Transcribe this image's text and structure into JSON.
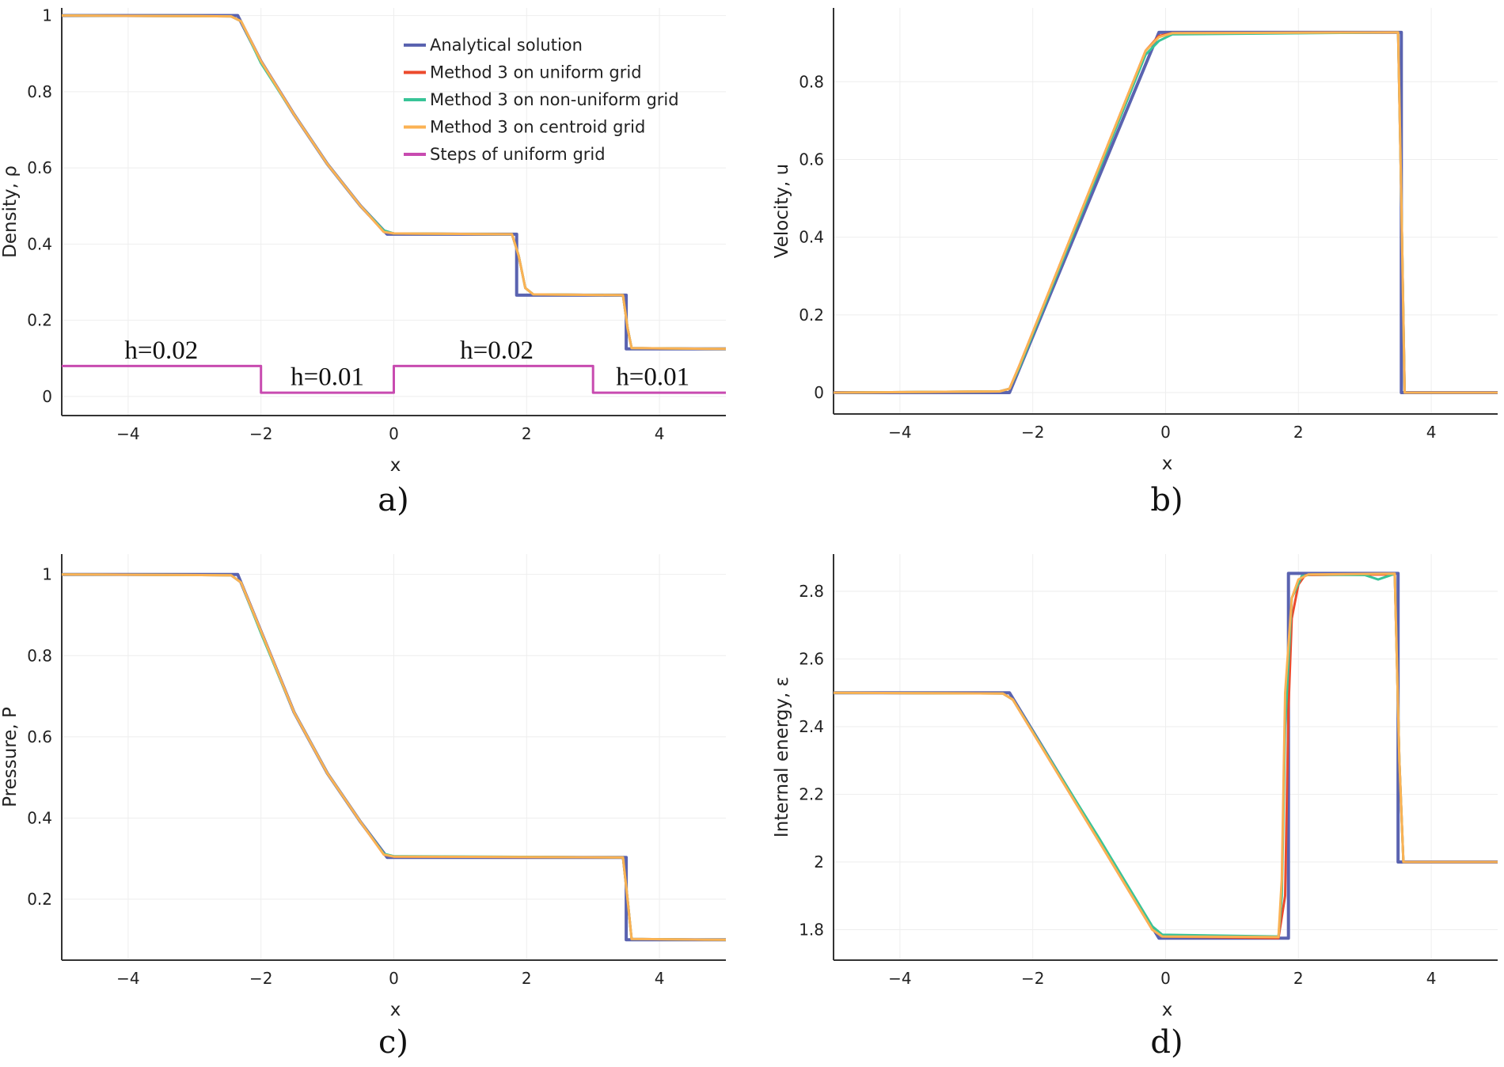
{
  "colors": {
    "analytical": "#5a63b0",
    "uniform": "#ec4a2c",
    "nonuniform": "#38c497",
    "centroid": "#fbb254",
    "steps": "#c84bb0"
  },
  "legend": [
    {
      "name": "Analytical solution",
      "color": "#5a63b0"
    },
    {
      "name": "Method 3 on uniform grid",
      "color": "#ec4a2c"
    },
    {
      "name": "Method 3 on non-uniform grid",
      "color": "#38c497"
    },
    {
      "name": "Method 3 on centroid grid",
      "color": "#fbb254"
    },
    {
      "name": "Steps of uniform grid",
      "color": "#c84bb0"
    }
  ],
  "chart_data": [
    {
      "id": "a",
      "type": "line",
      "panel_label": "a)",
      "xlabel": "x",
      "ylabel": "Density, ρ",
      "xlim": [
        -5,
        5
      ],
      "ylim": [
        -0.05,
        1.02
      ],
      "xticks": [
        -4,
        -2,
        0,
        2,
        4
      ],
      "xtick_labels": [
        "−4",
        "−2",
        "0",
        "2",
        "4"
      ],
      "yticks": [
        0,
        0.2,
        0.4,
        0.6,
        0.8,
        1
      ],
      "ytick_labels": [
        "0",
        "0.2",
        "0.4",
        "0.6",
        "0.8",
        "1"
      ],
      "series": [
        {
          "name": "Analytical solution",
          "color": "#5a63b0",
          "width": 4,
          "x": [
            -5,
            -2.35,
            -2.0,
            -1.5,
            -1.0,
            -0.5,
            -0.1,
            1.85,
            1.85,
            3.5,
            3.5,
            5
          ],
          "y": [
            1,
            1,
            0.88,
            0.74,
            0.61,
            0.5,
            0.426,
            0.426,
            0.266,
            0.266,
            0.125,
            0.125
          ]
        },
        {
          "name": "Method 3 on uniform grid",
          "color": "#ec4a2c",
          "width": 3,
          "x": [
            -5,
            -2.45,
            -2.3,
            -2.0,
            -1.5,
            -1.0,
            -0.5,
            -0.15,
            0.0,
            1.78,
            1.88,
            1.98,
            2.1,
            3.45,
            3.52,
            3.58,
            5
          ],
          "y": [
            1,
            0.998,
            0.985,
            0.88,
            0.74,
            0.61,
            0.5,
            0.432,
            0.428,
            0.426,
            0.37,
            0.285,
            0.268,
            0.266,
            0.18,
            0.127,
            0.125
          ]
        },
        {
          "name": "Method 3 on non-uniform grid",
          "color": "#38c497",
          "width": 3,
          "x": [
            -5,
            -2.45,
            -2.3,
            -2.0,
            -1.5,
            -1.0,
            -0.5,
            -0.15,
            0.0,
            1.78,
            1.88,
            1.98,
            2.1,
            3.45,
            3.52,
            3.58,
            5
          ],
          "y": [
            1,
            0.998,
            0.985,
            0.875,
            0.74,
            0.61,
            0.5,
            0.436,
            0.428,
            0.426,
            0.37,
            0.285,
            0.268,
            0.266,
            0.18,
            0.127,
            0.125
          ]
        },
        {
          "name": "Method 3 on centroid grid",
          "color": "#fbb254",
          "width": 3,
          "x": [
            -5,
            -2.45,
            -2.3,
            -2.0,
            -1.5,
            -1.0,
            -0.5,
            -0.15,
            0.0,
            1.78,
            1.88,
            1.98,
            2.1,
            3.45,
            3.52,
            3.58,
            5
          ],
          "y": [
            1,
            0.998,
            0.985,
            0.88,
            0.74,
            0.61,
            0.5,
            0.432,
            0.428,
            0.426,
            0.37,
            0.285,
            0.268,
            0.266,
            0.18,
            0.127,
            0.125
          ]
        },
        {
          "name": "Steps of uniform grid",
          "color": "#c84bb0",
          "width": 3,
          "x": [
            -5,
            -2,
            -2,
            0,
            0,
            3,
            3,
            5
          ],
          "y": [
            0.08,
            0.08,
            0.01,
            0.01,
            0.08,
            0.08,
            0.01,
            0.01
          ]
        }
      ],
      "annotations": [
        {
          "text": "h=0.02",
          "x": -3.5,
          "y": 0.1
        },
        {
          "text": "h=0.01",
          "x": -1.0,
          "y": 0.03
        },
        {
          "text": "h=0.02",
          "x": 1.55,
          "y": 0.1
        },
        {
          "text": "h=0.01",
          "x": 3.9,
          "y": 0.03
        }
      ]
    },
    {
      "id": "b",
      "type": "line",
      "panel_label": "b)",
      "xlabel": "x",
      "ylabel": "Velocity, u",
      "xlim": [
        -5,
        5
      ],
      "ylim": [
        -0.055,
        0.99
      ],
      "xticks": [
        -4,
        -2,
        0,
        2,
        4
      ],
      "xtick_labels": [
        "−4",
        "−2",
        "0",
        "2",
        "4"
      ],
      "yticks": [
        0,
        0.2,
        0.4,
        0.6,
        0.8
      ],
      "ytick_labels": [
        "0",
        "0.2",
        "0.4",
        "0.6",
        "0.8"
      ],
      "series": [
        {
          "name": "Analytical solution",
          "color": "#5a63b0",
          "width": 4,
          "x": [
            -5,
            -2.35,
            -0.1,
            3.55,
            3.55,
            5
          ],
          "y": [
            0,
            0,
            0.927,
            0.927,
            0,
            0
          ]
        },
        {
          "name": "Method 3 on uniform grid",
          "color": "#ec4a2c",
          "width": 3,
          "x": [
            -5,
            -2.5,
            -2.35,
            -2.2,
            -0.3,
            -0.1,
            0.1,
            3.5,
            3.55,
            3.6,
            5
          ],
          "y": [
            0,
            0.003,
            0.01,
            0.07,
            0.88,
            0.918,
            0.925,
            0.927,
            0.5,
            0.0,
            0
          ]
        },
        {
          "name": "Method 3 on non-uniform grid",
          "color": "#38c497",
          "width": 3,
          "x": [
            -5,
            -2.5,
            -2.35,
            -2.2,
            -0.3,
            -0.1,
            0.1,
            3.5,
            3.55,
            3.6,
            5
          ],
          "y": [
            0,
            0.003,
            0.01,
            0.065,
            0.87,
            0.905,
            0.922,
            0.927,
            0.5,
            0.0,
            0
          ]
        },
        {
          "name": "Method 3 on centroid grid",
          "color": "#fbb254",
          "width": 3,
          "x": [
            -5,
            -2.5,
            -2.35,
            -2.2,
            -0.3,
            -0.1,
            0.1,
            3.5,
            3.55,
            3.6,
            5
          ],
          "y": [
            0,
            0.003,
            0.01,
            0.07,
            0.88,
            0.915,
            0.925,
            0.927,
            0.5,
            0.0,
            0
          ]
        }
      ]
    },
    {
      "id": "c",
      "type": "line",
      "panel_label": "c)",
      "xlabel": "x",
      "ylabel": "Pressure, P",
      "xlim": [
        -5,
        5
      ],
      "ylim": [
        0.05,
        1.05
      ],
      "xticks": [
        -4,
        -2,
        0,
        2,
        4
      ],
      "xtick_labels": [
        "−4",
        "−2",
        "0",
        "2",
        "4"
      ],
      "yticks": [
        0.2,
        0.4,
        0.6,
        0.8,
        1
      ],
      "ytick_labels": [
        "0.2",
        "0.4",
        "0.6",
        "0.8",
        "1"
      ],
      "series": [
        {
          "name": "Analytical solution",
          "color": "#5a63b0",
          "width": 4,
          "x": [
            -5,
            -2.35,
            -2.0,
            -1.5,
            -1.0,
            -0.5,
            -0.1,
            3.5,
            3.5,
            5
          ],
          "y": [
            1,
            1,
            0.86,
            0.66,
            0.51,
            0.39,
            0.303,
            0.303,
            0.1,
            0.1
          ]
        },
        {
          "name": "Method 3 on uniform grid",
          "color": "#ec4a2c",
          "width": 3,
          "x": [
            -5,
            -2.45,
            -2.3,
            -2.0,
            -1.5,
            -1.0,
            -0.5,
            -0.15,
            0.0,
            3.45,
            3.52,
            3.58,
            5
          ],
          "y": [
            1,
            0.998,
            0.98,
            0.86,
            0.66,
            0.51,
            0.39,
            0.31,
            0.305,
            0.303,
            0.2,
            0.102,
            0.1
          ]
        },
        {
          "name": "Method 3 on non-uniform grid",
          "color": "#38c497",
          "width": 3,
          "x": [
            -5,
            -2.45,
            -2.3,
            -2.0,
            -1.5,
            -1.0,
            -0.5,
            -0.15,
            0.0,
            3.45,
            3.52,
            3.58,
            5
          ],
          "y": [
            1,
            0.998,
            0.98,
            0.855,
            0.66,
            0.51,
            0.39,
            0.312,
            0.306,
            0.303,
            0.2,
            0.102,
            0.1
          ]
        },
        {
          "name": "Method 3 on centroid grid",
          "color": "#fbb254",
          "width": 3,
          "x": [
            -5,
            -2.45,
            -2.3,
            -2.0,
            -1.5,
            -1.0,
            -0.5,
            -0.15,
            0.0,
            3.45,
            3.52,
            3.58,
            5
          ],
          "y": [
            1,
            0.998,
            0.98,
            0.86,
            0.66,
            0.51,
            0.39,
            0.31,
            0.305,
            0.303,
            0.2,
            0.102,
            0.1
          ]
        }
      ]
    },
    {
      "id": "d",
      "type": "line",
      "panel_label": "d)",
      "xlabel": "x",
      "ylabel": "Internal energy, ε",
      "xlim": [
        -5,
        5
      ],
      "ylim": [
        1.71,
        2.91
      ],
      "xticks": [
        -4,
        -2,
        0,
        2,
        4
      ],
      "xtick_labels": [
        "−4",
        "−2",
        "0",
        "2",
        "4"
      ],
      "yticks": [
        1.8,
        2,
        2.2,
        2.4,
        2.6,
        2.8
      ],
      "ytick_labels": [
        "1.8",
        "2",
        "2.2",
        "2.4",
        "2.6",
        "2.8"
      ],
      "series": [
        {
          "name": "Analytical solution",
          "color": "#5a63b0",
          "width": 4,
          "x": [
            -5,
            -2.35,
            -0.1,
            1.85,
            1.85,
            3.5,
            3.5,
            5
          ],
          "y": [
            2.5,
            2.5,
            1.775,
            1.775,
            2.853,
            2.853,
            2.0,
            2.0
          ]
        },
        {
          "name": "Method 3 on uniform grid",
          "color": "#ec4a2c",
          "width": 3,
          "x": [
            -5,
            -2.45,
            -2.3,
            -1.0,
            -0.2,
            -0.05,
            1.7,
            1.8,
            1.85,
            1.9,
            2.0,
            2.1,
            3.45,
            3.52,
            3.58,
            5
          ],
          "y": [
            2.5,
            2.498,
            2.48,
            2.06,
            1.8,
            1.78,
            1.775,
            1.9,
            2.45,
            2.72,
            2.82,
            2.848,
            2.85,
            2.3,
            2.0,
            2.0
          ]
        },
        {
          "name": "Method 3 on non-uniform grid",
          "color": "#38c497",
          "width": 3,
          "x": [
            -5,
            -2.45,
            -2.3,
            -1.0,
            -0.2,
            -0.05,
            1.7,
            1.75,
            1.8,
            1.9,
            2.05,
            2.2,
            3.0,
            3.2,
            3.35,
            3.45,
            3.52,
            3.58,
            5
          ],
          "y": [
            2.5,
            2.498,
            2.48,
            2.07,
            1.81,
            1.785,
            1.78,
            1.9,
            2.4,
            2.78,
            2.845,
            2.85,
            2.848,
            2.835,
            2.845,
            2.852,
            2.3,
            2.0,
            2.0
          ]
        },
        {
          "name": "Method 3 on centroid grid",
          "color": "#fbb254",
          "width": 3,
          "x": [
            -5,
            -2.45,
            -2.3,
            -1.0,
            -0.2,
            -0.05,
            1.7,
            1.75,
            1.8,
            1.9,
            2.0,
            2.15,
            3.45,
            3.52,
            3.58,
            5
          ],
          "y": [
            2.5,
            2.498,
            2.48,
            2.06,
            1.8,
            1.78,
            1.778,
            1.95,
            2.5,
            2.78,
            2.835,
            2.85,
            2.852,
            2.3,
            2.0,
            2.0
          ]
        }
      ]
    }
  ]
}
